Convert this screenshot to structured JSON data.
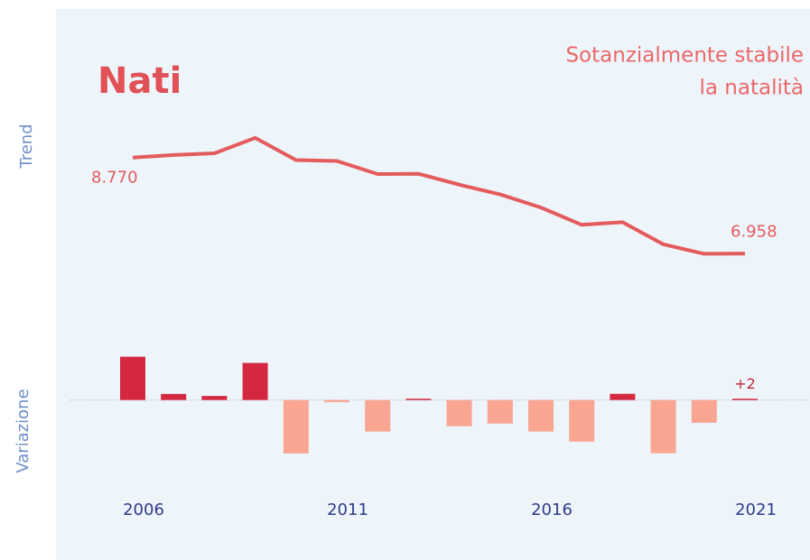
{
  "chart_data": [
    {
      "type": "line",
      "title": "Nati",
      "annotation": [
        "Sotanzialmente stabile",
        "la natalità"
      ],
      "ylabel": "Trend",
      "values": [
        8770,
        8818,
        8850,
        9141,
        8722,
        8706,
        8459,
        8464,
        8259,
        8075,
        7828,
        7502,
        7551,
        7134,
        6956,
        6958
      ],
      "value_labels": [
        "8.770",
        null,
        null,
        null,
        null,
        null,
        null,
        null,
        null,
        null,
        null,
        null,
        null,
        null,
        null,
        "6.958"
      ],
      "color": "#e35b5d",
      "ylim": [
        6300,
        9700
      ]
    },
    {
      "type": "bar",
      "ylabel": "Variazione",
      "categories": [
        "2006",
        null,
        null,
        null,
        null,
        "2011",
        null,
        null,
        null,
        null,
        "2016",
        null,
        null,
        null,
        null,
        "2021"
      ],
      "values": [
        340,
        48,
        32,
        291,
        -419,
        -16,
        -247,
        5,
        -205,
        -184,
        -247,
        -326,
        49,
        -417,
        -178,
        2
      ],
      "value_labels": [
        null,
        null,
        null,
        null,
        null,
        null,
        null,
        null,
        null,
        null,
        null,
        null,
        null,
        null,
        null,
        "+2"
      ],
      "positive_color": "#d3283f",
      "negative_color": "#f8a592",
      "ylim": [
        -540,
        450
      ]
    }
  ]
}
